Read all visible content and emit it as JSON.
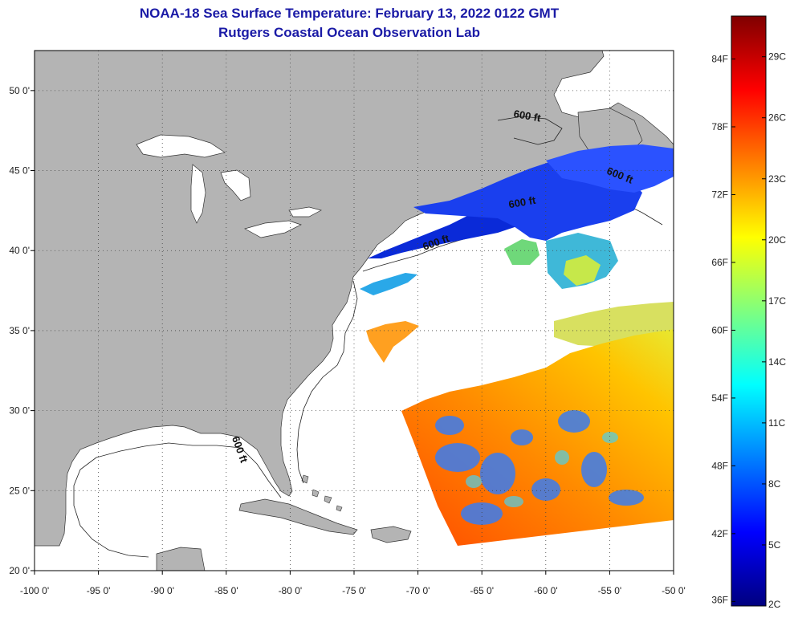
{
  "title": "NOAA-18 Sea Surface Temperature:  February 13, 2022 0122 GMT",
  "subtitle": "Rutgers Coastal Ocean Observation Lab",
  "map": {
    "lon_range": [
      -100,
      -50
    ],
    "lat_range": [
      20,
      52.5
    ],
    "x_ticks": [
      {
        "value": -100,
        "label": "-100 0'"
      },
      {
        "value": -95,
        "label": "-95 0'"
      },
      {
        "value": -90,
        "label": "-90 0'"
      },
      {
        "value": -85,
        "label": "-85 0'"
      },
      {
        "value": -80,
        "label": "-80 0'"
      },
      {
        "value": -75,
        "label": "-75 0'"
      },
      {
        "value": -70,
        "label": "-70 0'"
      },
      {
        "value": -65,
        "label": "-65 0'"
      },
      {
        "value": -60,
        "label": "-60 0'"
      },
      {
        "value": -55,
        "label": "-55 0'"
      },
      {
        "value": -50,
        "label": "-50 0'"
      }
    ],
    "y_ticks": [
      {
        "value": 20,
        "label": "20 0'"
      },
      {
        "value": 25,
        "label": "25 0'"
      },
      {
        "value": 30,
        "label": "30 0'"
      },
      {
        "value": 35,
        "label": "35 0'"
      },
      {
        "value": 40,
        "label": "40 0'"
      },
      {
        "value": 45,
        "label": "45 0'"
      },
      {
        "value": 50,
        "label": "50 0'"
      }
    ],
    "grid": true,
    "grid_style": "dotted",
    "land_color": "#b4b4b4",
    "ocean_nodata_color": "#ffffff",
    "depth_labels": [
      {
        "text": "600 ft",
        "lon": -61.5,
        "lat": 48.2,
        "angle": 10
      },
      {
        "text": "600 ft",
        "lon": -54.3,
        "lat": 44.5,
        "angle": 22
      },
      {
        "text": "600 ft",
        "lon": -61.8,
        "lat": 42.8,
        "angle": -10
      },
      {
        "text": "600 ft",
        "lon": -68.5,
        "lat": 40.3,
        "angle": -20
      },
      {
        "text": "600 ft",
        "lon": -84.2,
        "lat": 27.5,
        "angle": 70
      }
    ]
  },
  "colorbar": {
    "colors": [
      "#00007f",
      "#0000ff",
      "#007fff",
      "#00ffff",
      "#7fff7f",
      "#ffff00",
      "#ff7f00",
      "#ff0000",
      "#7f0000"
    ],
    "celsius_ticks": [
      "2C",
      "5C",
      "8C",
      "11C",
      "14C",
      "17C",
      "20C",
      "23C",
      "26C",
      "29C"
    ],
    "fahrenheit_ticks": [
      "36F",
      "42F",
      "48F",
      "54F",
      "60F",
      "66F",
      "72F",
      "78F",
      "84F"
    ],
    "range_c": [
      2,
      31
    ]
  }
}
